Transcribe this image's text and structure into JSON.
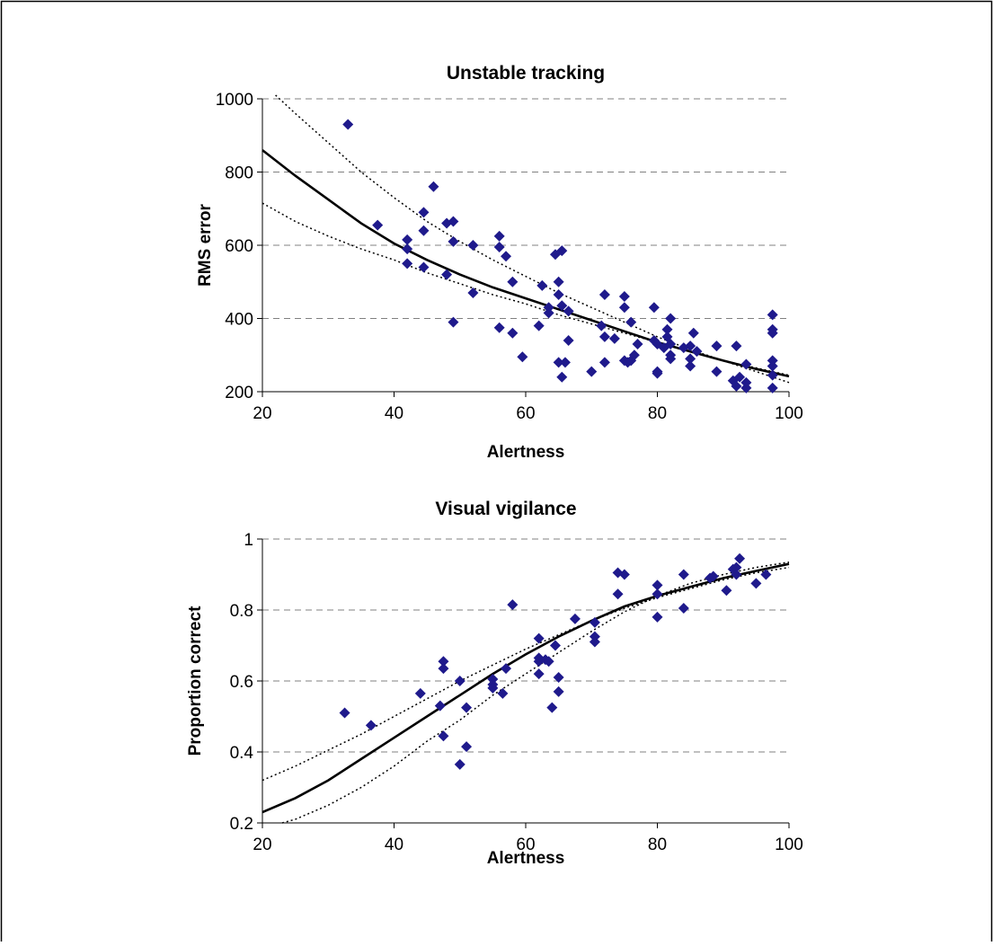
{
  "colors": {
    "marker": "#1f1a8c",
    "fit_line": "#000000",
    "confidence_line": "#000000",
    "gridline": "#808080",
    "frame": "#000000"
  },
  "chart_data": [
    {
      "type": "scatter",
      "title": "Unstable tracking",
      "xlabel": "Alertness",
      "ylabel": "RMS error",
      "xlim": [
        20,
        100
      ],
      "ylim": [
        200,
        1000
      ],
      "xticks": [
        20,
        40,
        60,
        80,
        100
      ],
      "yticks": [
        200,
        400,
        600,
        800,
        1000
      ],
      "grid": "horizontal-dashed",
      "legend": "none",
      "points": [
        [
          33,
          930
        ],
        [
          37.5,
          655
        ],
        [
          42,
          615
        ],
        [
          42,
          590
        ],
        [
          42,
          550
        ],
        [
          44.5,
          540
        ],
        [
          44.5,
          690
        ],
        [
          44.5,
          640
        ],
        [
          46,
          760
        ],
        [
          48,
          660
        ],
        [
          48,
          520
        ],
        [
          49,
          665
        ],
        [
          49,
          610
        ],
        [
          49,
          390
        ],
        [
          52,
          600
        ],
        [
          52,
          470
        ],
        [
          56,
          625
        ],
        [
          56,
          595
        ],
        [
          56,
          375
        ],
        [
          57,
          570
        ],
        [
          58,
          500
        ],
        [
          58,
          360
        ],
        [
          59.5,
          295
        ],
        [
          62,
          380
        ],
        [
          62.5,
          490
        ],
        [
          63.5,
          430
        ],
        [
          63.5,
          415
        ],
        [
          64.5,
          575
        ],
        [
          65,
          500
        ],
        [
          65,
          465
        ],
        [
          65,
          280
        ],
        [
          65.5,
          435
        ],
        [
          65.5,
          240
        ],
        [
          65.5,
          585
        ],
        [
          66,
          280
        ],
        [
          66.5,
          420
        ],
        [
          66.5,
          340
        ],
        [
          70,
          255
        ],
        [
          71.5,
          380
        ],
        [
          72,
          465
        ],
        [
          72,
          350
        ],
        [
          72,
          280
        ],
        [
          73.5,
          345
        ],
        [
          75,
          460
        ],
        [
          75,
          430
        ],
        [
          75,
          285
        ],
        [
          75.5,
          280
        ],
        [
          76,
          390
        ],
        [
          76,
          285
        ],
        [
          76.5,
          300
        ],
        [
          77,
          330
        ],
        [
          79.5,
          430
        ],
        [
          79.5,
          340
        ],
        [
          80,
          330
        ],
        [
          80,
          255
        ],
        [
          80,
          250
        ],
        [
          81,
          320
        ],
        [
          81.5,
          370
        ],
        [
          81.5,
          350
        ],
        [
          82,
          400
        ],
        [
          82,
          330
        ],
        [
          82,
          300
        ],
        [
          82,
          290
        ],
        [
          84,
          320
        ],
        [
          85,
          325
        ],
        [
          85,
          290
        ],
        [
          85,
          270
        ],
        [
          85.5,
          360
        ],
        [
          86,
          310
        ],
        [
          89,
          325
        ],
        [
          89,
          255
        ],
        [
          91.5,
          230
        ],
        [
          92,
          325
        ],
        [
          92,
          215
        ],
        [
          92.5,
          240
        ],
        [
          93.5,
          275
        ],
        [
          93.5,
          225
        ],
        [
          93.5,
          210
        ],
        [
          97.5,
          410
        ],
        [
          97.5,
          370
        ],
        [
          97.5,
          360
        ],
        [
          97.5,
          285
        ],
        [
          97.5,
          270
        ],
        [
          97.5,
          245
        ],
        [
          97.5,
          210
        ]
      ],
      "fit_line": [
        [
          20,
          860
        ],
        [
          25,
          790
        ],
        [
          30,
          725
        ],
        [
          35,
          660
        ],
        [
          40,
          605
        ],
        [
          45,
          560
        ],
        [
          50,
          520
        ],
        [
          55,
          485
        ],
        [
          60,
          455
        ],
        [
          65,
          425
        ],
        [
          70,
          395
        ],
        [
          75,
          365
        ],
        [
          80,
          335
        ],
        [
          85,
          310
        ],
        [
          90,
          285
        ],
        [
          95,
          262
        ],
        [
          100,
          242
        ]
      ],
      "confidence_upper": [
        [
          22,
          1010
        ],
        [
          25,
          960
        ],
        [
          30,
          880
        ],
        [
          35,
          800
        ],
        [
          40,
          730
        ],
        [
          45,
          665
        ],
        [
          50,
          610
        ],
        [
          55,
          560
        ],
        [
          60,
          515
        ],
        [
          65,
          470
        ],
        [
          70,
          430
        ],
        [
          75,
          390
        ],
        [
          80,
          350
        ],
        [
          85,
          315
        ],
        [
          90,
          285
        ],
        [
          95,
          255
        ],
        [
          100,
          225
        ]
      ],
      "confidence_lower": [
        [
          20,
          715
        ],
        [
          25,
          665
        ],
        [
          30,
          625
        ],
        [
          35,
          590
        ],
        [
          40,
          560
        ],
        [
          45,
          525
        ],
        [
          50,
          495
        ],
        [
          55,
          465
        ],
        [
          60,
          440
        ],
        [
          65,
          410
        ],
        [
          70,
          385
        ],
        [
          75,
          360
        ],
        [
          80,
          335
        ],
        [
          85,
          310
        ],
        [
          90,
          285
        ],
        [
          95,
          265
        ],
        [
          100,
          245
        ]
      ]
    },
    {
      "type": "scatter",
      "title": "Visual vigilance",
      "xlabel": "Alertness",
      "ylabel": "Proportion correct",
      "xlim": [
        20,
        100
      ],
      "ylim": [
        0.2,
        1
      ],
      "xticks": [
        20,
        40,
        60,
        80,
        100
      ],
      "yticks": [
        0.2,
        0.4,
        0.6,
        0.8,
        1
      ],
      "grid": "horizontal-dashed",
      "legend": "none",
      "points": [
        [
          32.5,
          0.51
        ],
        [
          36.5,
          0.475
        ],
        [
          44,
          0.565
        ],
        [
          47,
          0.53
        ],
        [
          47.5,
          0.655
        ],
        [
          47.5,
          0.635
        ],
        [
          47.5,
          0.445
        ],
        [
          50,
          0.6
        ],
        [
          50,
          0.365
        ],
        [
          51,
          0.525
        ],
        [
          51,
          0.415
        ],
        [
          55,
          0.605
        ],
        [
          55,
          0.59
        ],
        [
          55,
          0.58
        ],
        [
          56.5,
          0.565
        ],
        [
          57,
          0.635
        ],
        [
          58,
          0.815
        ],
        [
          62,
          0.72
        ],
        [
          62,
          0.665
        ],
        [
          62,
          0.655
        ],
        [
          62,
          0.62
        ],
        [
          63,
          0.66
        ],
        [
          63.5,
          0.655
        ],
        [
          64,
          0.525
        ],
        [
          64.5,
          0.7
        ],
        [
          65,
          0.61
        ],
        [
          65,
          0.57
        ],
        [
          67.5,
          0.775
        ],
        [
          70.5,
          0.765
        ],
        [
          70.5,
          0.725
        ],
        [
          70.5,
          0.71
        ],
        [
          74,
          0.905
        ],
        [
          74,
          0.845
        ],
        [
          75,
          0.9
        ],
        [
          80,
          0.87
        ],
        [
          80,
          0.845
        ],
        [
          80,
          0.78
        ],
        [
          84,
          0.9
        ],
        [
          84,
          0.805
        ],
        [
          88,
          0.89
        ],
        [
          88.5,
          0.895
        ],
        [
          90.5,
          0.855
        ],
        [
          91.5,
          0.915
        ],
        [
          92,
          0.92
        ],
        [
          92,
          0.9
        ],
        [
          92.5,
          0.945
        ],
        [
          95,
          0.875
        ],
        [
          96.5,
          0.9
        ]
      ],
      "fit_line": [
        [
          20,
          0.23
        ],
        [
          25,
          0.27
        ],
        [
          30,
          0.32
        ],
        [
          35,
          0.38
        ],
        [
          40,
          0.44
        ],
        [
          45,
          0.5
        ],
        [
          50,
          0.56
        ],
        [
          55,
          0.62
        ],
        [
          60,
          0.675
        ],
        [
          65,
          0.725
        ],
        [
          70,
          0.77
        ],
        [
          75,
          0.81
        ],
        [
          80,
          0.84
        ],
        [
          85,
          0.865
        ],
        [
          90,
          0.89
        ],
        [
          95,
          0.91
        ],
        [
          100,
          0.93
        ]
      ],
      "confidence_upper": [
        [
          20,
          0.32
        ],
        [
          25,
          0.36
        ],
        [
          30,
          0.405
        ],
        [
          35,
          0.45
        ],
        [
          40,
          0.5
        ],
        [
          45,
          0.55
        ],
        [
          50,
          0.6
        ],
        [
          55,
          0.645
        ],
        [
          60,
          0.69
        ],
        [
          65,
          0.73
        ],
        [
          70,
          0.77
        ],
        [
          75,
          0.805
        ],
        [
          80,
          0.835
        ],
        [
          85,
          0.86
        ],
        [
          90,
          0.885
        ],
        [
          95,
          0.905
        ],
        [
          100,
          0.92
        ]
      ],
      "confidence_lower": [
        [
          23,
          0.2
        ],
        [
          25,
          0.21
        ],
        [
          30,
          0.25
        ],
        [
          35,
          0.3
        ],
        [
          40,
          0.36
        ],
        [
          45,
          0.43
        ],
        [
          50,
          0.49
        ],
        [
          55,
          0.56
        ],
        [
          60,
          0.62
        ],
        [
          65,
          0.68
        ],
        [
          70,
          0.74
        ],
        [
          75,
          0.795
        ],
        [
          80,
          0.84
        ],
        [
          85,
          0.875
        ],
        [
          90,
          0.9
        ],
        [
          95,
          0.92
        ],
        [
          100,
          0.935
        ]
      ]
    }
  ]
}
